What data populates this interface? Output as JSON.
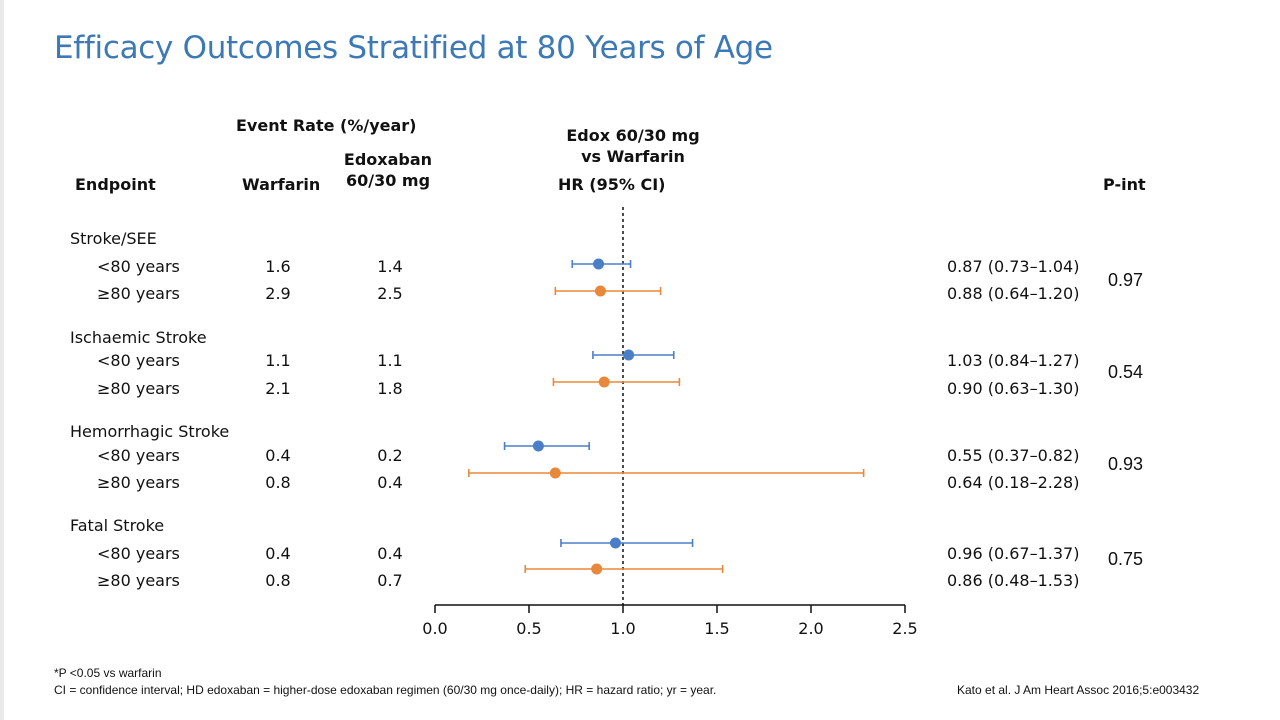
{
  "title": "Efficacy Outcomes Stratified at 80 Years of Age",
  "headers": {
    "endpoint": "Endpoint",
    "event_rate": "Event Rate (%/year)",
    "warfarin": "Warfarin",
    "edoxaban_line1": "Edoxaban",
    "edoxaban_line2": "60/30 mg",
    "hr_line1": "Edox 60/30 mg",
    "hr_line2": "vs Warfarin",
    "hr_line3": "HR (95% CI)",
    "pint": "P-int"
  },
  "colors": {
    "title": "#3d7ab5",
    "under80": "#4a7fc7",
    "over80": "#e8883a"
  },
  "chart_data": {
    "type": "forest",
    "xlim": [
      0.0,
      2.5
    ],
    "xticks": [
      "0.0",
      "0.5",
      "1.0",
      "1.5",
      "2.0",
      "2.5"
    ],
    "reference_line": 1.0,
    "groups": [
      {
        "name": "Stroke/SEE",
        "pint": "0.97",
        "rows": [
          {
            "label": "<80 years",
            "warfarin": "1.6",
            "edoxaban": "1.4",
            "hr": 0.87,
            "lo": 0.73,
            "hi": 1.04,
            "hr_text": "0.87 (0.73–1.04)",
            "series": "under80"
          },
          {
            "label": "≥80 years",
            "warfarin": "2.9",
            "edoxaban": "2.5",
            "hr": 0.88,
            "lo": 0.64,
            "hi": 1.2,
            "hr_text": "0.88 (0.64–1.20)",
            "series": "over80"
          }
        ]
      },
      {
        "name": "Ischaemic Stroke",
        "pint": "0.54",
        "rows": [
          {
            "label": "<80 years",
            "warfarin": "1.1",
            "edoxaban": "1.1",
            "hr": 1.03,
            "lo": 0.84,
            "hi": 1.27,
            "hr_text": "1.03 (0.84–1.27)",
            "series": "under80"
          },
          {
            "label": "≥80 years",
            "warfarin": "2.1",
            "edoxaban": "1.8",
            "hr": 0.9,
            "lo": 0.63,
            "hi": 1.3,
            "hr_text": "0.90 (0.63–1.30)",
            "series": "over80"
          }
        ]
      },
      {
        "name": "Hemorrhagic Stroke",
        "pint": "0.93",
        "rows": [
          {
            "label": "<80 years",
            "warfarin": "0.4",
            "edoxaban": "0.2",
            "hr": 0.55,
            "lo": 0.37,
            "hi": 0.82,
            "hr_text": "0.55 (0.37–0.82)",
            "series": "under80"
          },
          {
            "label": "≥80 years",
            "warfarin": "0.8",
            "edoxaban": "0.4",
            "hr": 0.64,
            "lo": 0.18,
            "hi": 2.28,
            "hr_text": "0.64 (0.18–2.28)",
            "series": "over80"
          }
        ]
      },
      {
        "name": "Fatal Stroke",
        "pint": "0.75",
        "rows": [
          {
            "label": "<80 years",
            "warfarin": "0.4",
            "edoxaban": "0.4",
            "hr": 0.96,
            "lo": 0.67,
            "hi": 1.37,
            "hr_text": "0.96 (0.67–1.37)",
            "series": "under80"
          },
          {
            "label": "≥80 years",
            "warfarin": "0.8",
            "edoxaban": "0.7",
            "hr": 0.86,
            "lo": 0.48,
            "hi": 1.53,
            "hr_text": "0.86 (0.48–1.53)",
            "series": "over80"
          }
        ]
      }
    ]
  },
  "footnotes": {
    "line1": "*P <0.05 vs warfarin",
    "line2": "CI = confidence interval; HD edoxaban = higher-dose edoxaban regimen (60/30 mg once-daily); HR = hazard ratio; yr = year.",
    "citation": "Kato et al. J Am Heart Assoc 2016;5:e003432"
  }
}
